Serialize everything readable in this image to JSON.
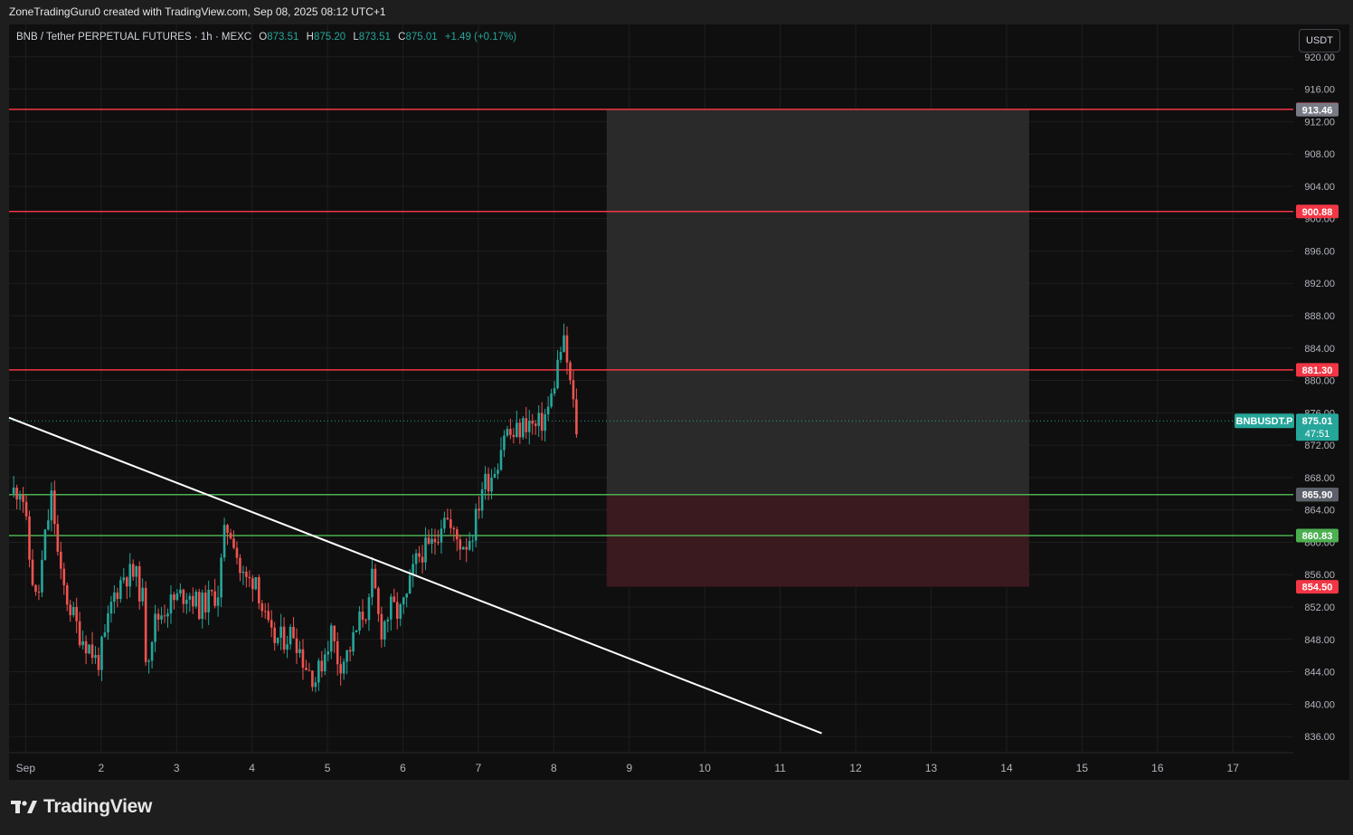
{
  "header": {
    "credit": "ZoneTradingGuru0 created with TradingView.com, Sep 08, 2025 08:12 UTC+1"
  },
  "legend": {
    "symbol": "BNB / Tether PERPETUAL FUTURES · 1h · MEXC",
    "o_label": "O",
    "o_value": "873.51",
    "h_label": "H",
    "h_value": "875.20",
    "l_label": "L",
    "l_value": "873.51",
    "c_label": "C",
    "c_value": "875.01",
    "change": "+1.49 (+0.17%)"
  },
  "currency_button": "USDT",
  "brand": {
    "logo_icon": "tradingview-logo-icon",
    "name": "TradingView"
  },
  "colors": {
    "up": "#26a69a",
    "down": "#ef5350",
    "resistance": "#f23645",
    "support": "#4caf50",
    "trendline": "#ffffff",
    "background": "#0f0f0f"
  },
  "chart_data": {
    "type": "candlestick",
    "interval": "1h",
    "ylim": [
      834,
      924
    ],
    "y_ticks": [
      "920.00",
      "916.00",
      "912.00",
      "908.00",
      "904.00",
      "900.00",
      "896.00",
      "892.00",
      "888.00",
      "884.00",
      "880.00",
      "876.00",
      "872.00",
      "868.00",
      "864.00",
      "860.00",
      "856.00",
      "852.00",
      "848.00",
      "844.00",
      "840.00",
      "836.00"
    ],
    "x_ticks": [
      "Sep",
      "2",
      "3",
      "4",
      "5",
      "6",
      "7",
      "8",
      "9",
      "10",
      "11",
      "12",
      "13",
      "14",
      "15",
      "16",
      "17"
    ],
    "x_domain_days": [
      0.78,
      17.8
    ],
    "current_price": {
      "symbol": "BNBUSDT.P",
      "price": "875.01",
      "countdown": "47:51",
      "value": 875.01
    },
    "horizontal_levels": [
      {
        "price": 913.5,
        "label": "913.50",
        "kind": "resistance"
      },
      {
        "price": 900.88,
        "label": "900.88",
        "kind": "resistance"
      },
      {
        "price": 881.3,
        "label": "881.30",
        "kind": "resistance"
      },
      {
        "price": 865.89,
        "label": "865.89",
        "kind": "support"
      },
      {
        "price": 860.83,
        "label": "860.83",
        "kind": "support"
      }
    ],
    "position_tool": {
      "entry": 865.9,
      "entry_label": "865.90",
      "target": 913.46,
      "target_label": "913.46",
      "stop": 854.5,
      "stop_label": "854.50",
      "start_day": 8.7,
      "end_day": 14.3
    },
    "trendline": {
      "start": {
        "day": 0.78,
        "price": 875.4
      },
      "end": {
        "day": 11.55,
        "price": 836.4
      }
    },
    "price_path": [
      [
        0.8,
        866
      ],
      [
        0.95,
        867
      ],
      [
        1.05,
        858
      ],
      [
        1.15,
        852
      ],
      [
        1.25,
        860
      ],
      [
        1.35,
        866
      ],
      [
        1.45,
        856
      ],
      [
        1.55,
        853
      ],
      [
        1.7,
        849
      ],
      [
        1.85,
        847
      ],
      [
        1.95,
        845
      ],
      [
        2.05,
        848
      ],
      [
        2.15,
        853
      ],
      [
        2.3,
        856
      ],
      [
        2.45,
        856
      ],
      [
        2.55,
        853
      ],
      [
        2.6,
        845
      ],
      [
        2.7,
        850
      ],
      [
        2.85,
        852
      ],
      [
        3.0,
        853
      ],
      [
        3.15,
        854
      ],
      [
        3.3,
        852
      ],
      [
        3.45,
        853
      ],
      [
        3.55,
        854
      ],
      [
        3.65,
        862
      ],
      [
        3.75,
        861
      ],
      [
        3.85,
        856
      ],
      [
        3.95,
        855
      ],
      [
        4.05,
        856
      ],
      [
        4.15,
        851
      ],
      [
        4.25,
        848
      ],
      [
        4.4,
        848
      ],
      [
        4.55,
        849
      ],
      [
        4.7,
        845
      ],
      [
        4.85,
        843
      ],
      [
        4.95,
        846
      ],
      [
        5.05,
        849
      ],
      [
        5.15,
        845
      ],
      [
        5.25,
        846
      ],
      [
        5.35,
        848
      ],
      [
        5.45,
        851
      ],
      [
        5.55,
        852
      ],
      [
        5.6,
        856
      ],
      [
        5.7,
        849
      ],
      [
        5.85,
        852
      ],
      [
        5.95,
        851
      ],
      [
        6.05,
        853
      ],
      [
        6.15,
        857
      ],
      [
        6.25,
        859
      ],
      [
        6.35,
        859
      ],
      [
        6.45,
        861
      ],
      [
        6.55,
        864
      ],
      [
        6.65,
        861
      ],
      [
        6.75,
        860
      ],
      [
        6.85,
        860
      ],
      [
        6.95,
        862
      ],
      [
        7.05,
        867
      ],
      [
        7.15,
        868
      ],
      [
        7.25,
        870
      ],
      [
        7.35,
        874
      ],
      [
        7.45,
        873
      ],
      [
        7.55,
        874
      ],
      [
        7.65,
        875
      ],
      [
        7.75,
        874
      ],
      [
        7.85,
        875
      ],
      [
        7.95,
        877
      ],
      [
        8.05,
        882
      ],
      [
        8.12,
        885
      ],
      [
        8.18,
        882
      ],
      [
        8.24,
        878
      ],
      [
        8.3,
        874
      ],
      [
        8.34,
        875.01
      ]
    ]
  }
}
